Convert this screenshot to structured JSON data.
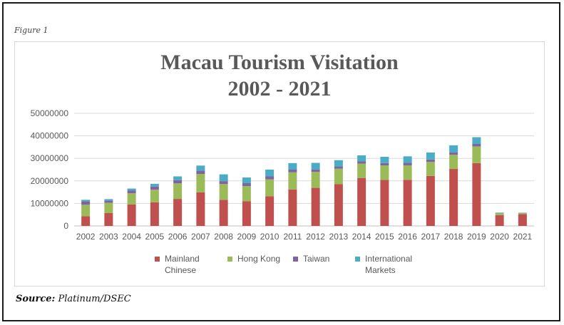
{
  "figure_label": "Figure 1",
  "source": {
    "label": "Source:",
    "text": "Platinum/DSEC"
  },
  "chart_data": {
    "type": "bar",
    "stacked": true,
    "title_line1": "Macau Tourism Visitation",
    "title_line2": "2002 - 2021",
    "xlabel": "",
    "ylabel": "",
    "ylim": [
      0,
      50000000
    ],
    "yticks": [
      0,
      10000000,
      20000000,
      30000000,
      40000000,
      50000000
    ],
    "grid": true,
    "legend_position": "bottom",
    "categories": [
      "2002",
      "2003",
      "2004",
      "2005",
      "2006",
      "2007",
      "2008",
      "2009",
      "2010",
      "2011",
      "2012",
      "2013",
      "2014",
      "2015",
      "2016",
      "2017",
      "2018",
      "2019",
      "2020",
      "2021"
    ],
    "series": [
      {
        "name": "Mainland Chinese",
        "color": "#c0504d",
        "values": [
          4300000,
          5700000,
          9500000,
          10500000,
          12000000,
          14900000,
          11600000,
          11000000,
          13200000,
          16200000,
          16900000,
          18600000,
          21300000,
          20400000,
          20500000,
          22200000,
          25300000,
          27900000,
          4800000,
          5200000
        ]
      },
      {
        "name": "Hong Kong",
        "color": "#9bbb59",
        "values": [
          5100000,
          4600000,
          5000000,
          5600000,
          6900000,
          8200000,
          7000000,
          6700000,
          7500000,
          7600000,
          7100000,
          6800000,
          6400000,
          6500000,
          6400000,
          6200000,
          6300000,
          7400000,
          800000,
          500000
        ]
      },
      {
        "name": "Taiwan",
        "color": "#8064a2",
        "values": [
          1500000,
          1000000,
          1300000,
          1400000,
          1400000,
          1400000,
          1300000,
          1300000,
          1300000,
          1200000,
          1100000,
          1000000,
          950000,
          1000000,
          1100000,
          1100000,
          1100000,
          1100000,
          100000,
          50000
        ]
      },
      {
        "name": "International Markets",
        "color": "#4bacc6",
        "values": [
          700000,
          600000,
          800000,
          1200000,
          1700000,
          2300000,
          3000000,
          2500000,
          3000000,
          2900000,
          2900000,
          2800000,
          2700000,
          2800000,
          2900000,
          3100000,
          3100000,
          3000000,
          200000,
          150000
        ]
      }
    ]
  }
}
